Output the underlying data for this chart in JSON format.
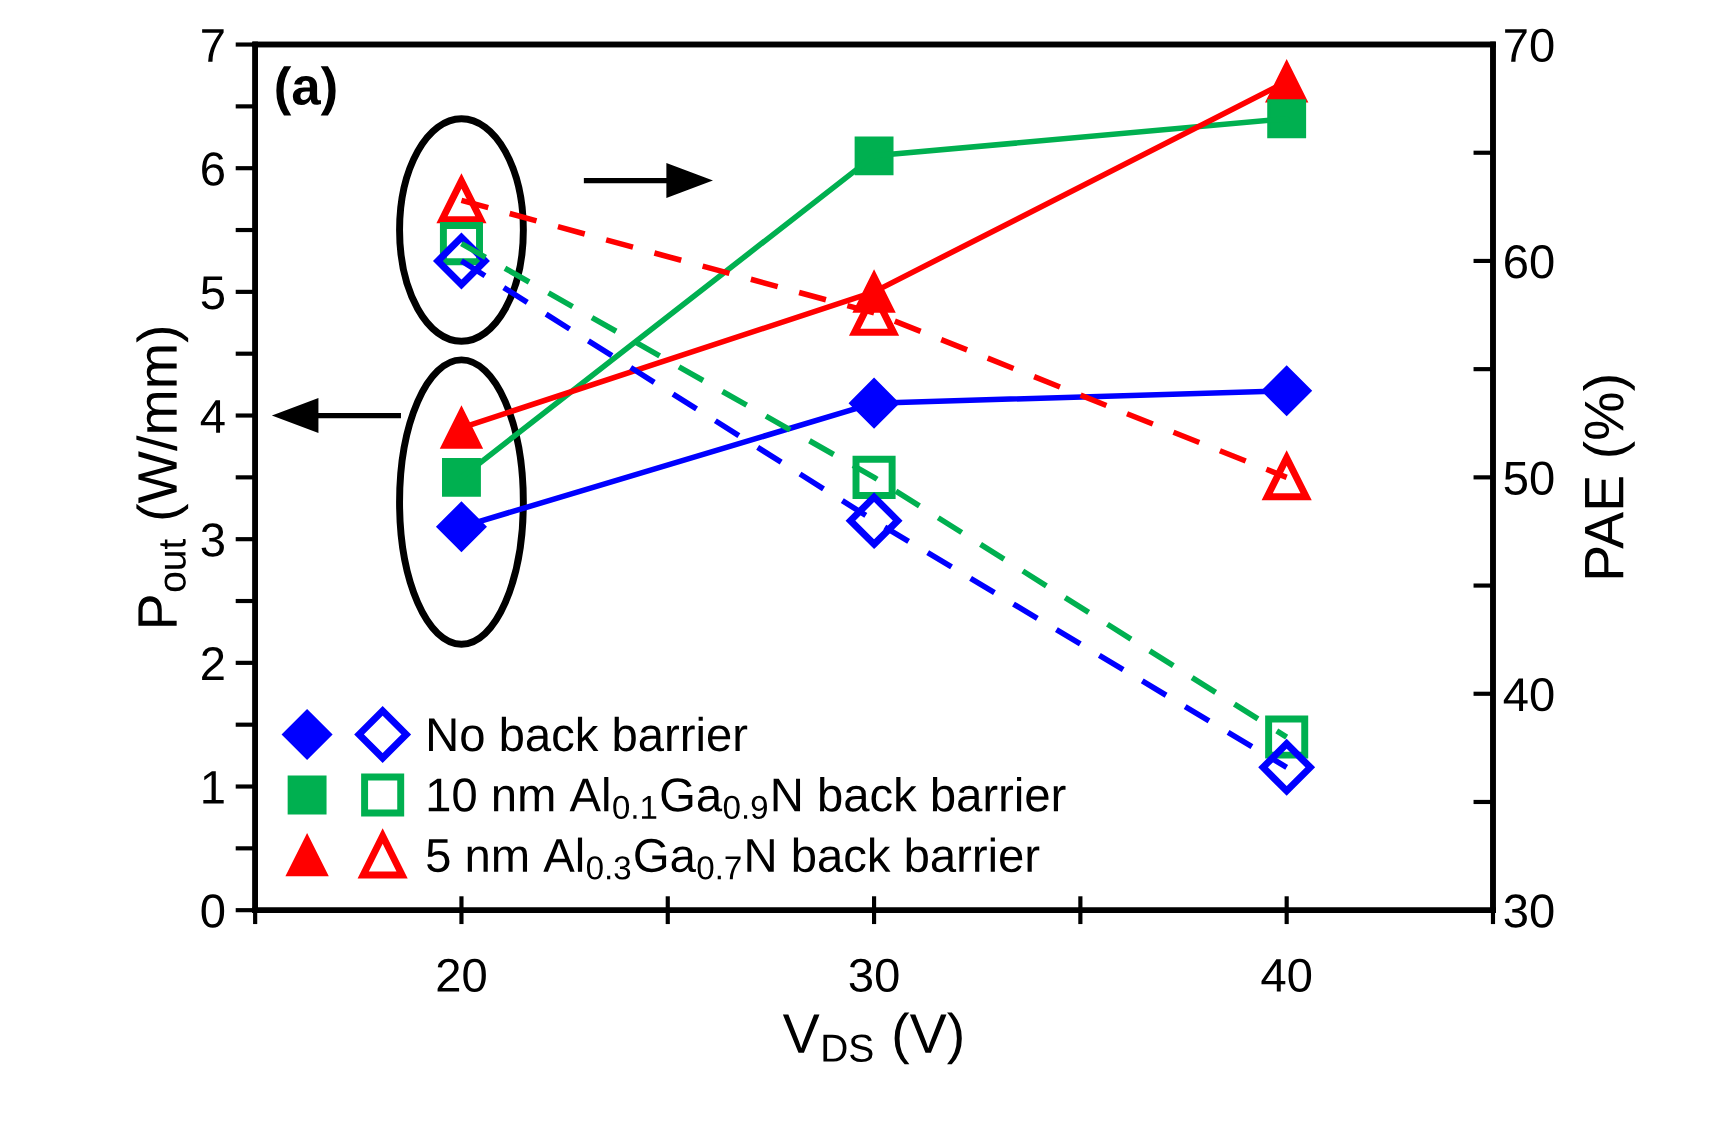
{
  "chart_data": {
    "type": "line",
    "xlabel": "V$_{DS}$ (V)",
    "ylabel": "P$_{out}$ (W/mm)",
    "y2label": "PAE (%)",
    "x": [
      20,
      30,
      40
    ],
    "series": [
      {
        "name": "No back barrier",
        "color": "#0000ff",
        "marker": "diamond",
        "line_style": "solid",
        "values": [
          3.1,
          4.1,
          4.2
        ]
      },
      {
        "name": "10 nm Al$_{0.1}$Ga$_{0.9}$N back barrier",
        "color": "#00b050",
        "marker": "square",
        "line_style": "solid",
        "values": [
          3.5,
          6.1,
          6.4
        ]
      },
      {
        "name": "5 nm Al$_{0.3}$Ga$_{0.7}$N back barrier",
        "color": "#ff0000",
        "marker": "triangle",
        "line_style": "solid",
        "values": [
          3.9,
          5.0,
          6.7
        ]
      },
      {
        "color": "#0000ff",
        "marker": "diamond",
        "line_style": "dashed",
        "axis": "y2",
        "values": [
          60,
          48,
          36.6
        ]
      },
      {
        "color": "#00b050",
        "marker": "square",
        "line_style": "dashed",
        "axis": "y2",
        "values": [
          60.8,
          50,
          38
        ]
      },
      {
        "color": "#ff0000",
        "marker": "triangle",
        "line_style": "dashed",
        "axis": "y2",
        "values": [
          62.8,
          57.6,
          50
        ]
      }
    ],
    "xlim": [
      15,
      45
    ],
    "xticks": [
      {
        "value": 15,
        "label": null
      },
      20,
      {
        "value": 25,
        "label": null
      },
      30,
      {
        "value": 35,
        "label": null
      },
      40,
      {
        "value": 45,
        "label": null
      }
    ],
    "ylim": [
      0,
      7
    ],
    "yticks": [
      0,
      {
        "value": 0.5,
        "label": null
      },
      1,
      {
        "value": 1.5,
        "label": null
      },
      2,
      {
        "value": 2.5,
        "label": null
      },
      3,
      {
        "value": 3.5,
        "label": null
      },
      4,
      {
        "value": 4.5,
        "label": null
      },
      5,
      {
        "value": 5.5,
        "label": null
      },
      6,
      {
        "value": 6.5,
        "label": null
      },
      7
    ],
    "y2lim": [
      30,
      70
    ],
    "y2ticks": [
      30,
      {
        "value": 35,
        "label": null
      },
      40,
      {
        "value": 45,
        "label": null
      },
      50,
      {
        "value": 55,
        "label": null
      },
      60,
      {
        "value": 65,
        "label": null
      },
      70
    ],
    "annotations": [
      "(a)"
    ],
    "legend": "bottom left",
    "grid": false
  }
}
